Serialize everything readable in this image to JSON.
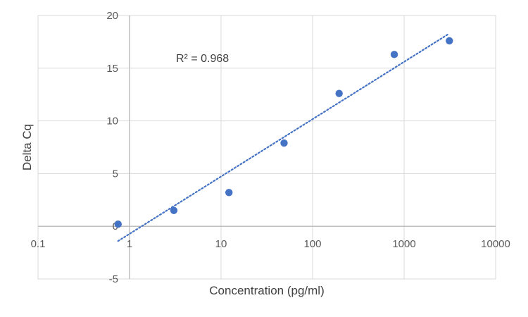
{
  "chart_data": {
    "type": "scatter",
    "title": "",
    "xlabel": "Concentration (pg/ml)",
    "ylabel": "Delta Cq",
    "x_scale": "log",
    "xlim": [
      0.1,
      10000
    ],
    "ylim": [
      -5,
      20
    ],
    "x_ticks": [
      0.1,
      1,
      10,
      100,
      1000,
      10000
    ],
    "x_tick_labels": [
      "0.1",
      "1",
      "10",
      "100",
      "1000",
      "10000"
    ],
    "y_ticks": [
      -5,
      0,
      5,
      10,
      15,
      20
    ],
    "y_tick_labels": [
      "-5",
      "0",
      "5",
      "10",
      "15",
      "20"
    ],
    "grid": true,
    "legend": "none",
    "series": [
      {
        "x": [
          0.75,
          3.05,
          12.2,
          48.8,
          195,
          781,
          3125
        ],
        "y": [
          0.2,
          1.5,
          3.2,
          7.9,
          12.6,
          16.3,
          17.6
        ],
        "color": "#4472C4"
      }
    ],
    "trendline": {
      "type": "logarithmic",
      "x_range": [
        0.75,
        3000
      ],
      "y_range": [
        -1.4,
        18.2
      ],
      "color": "#4472C4",
      "style": "dotted"
    },
    "annotations": [
      {
        "text": "R² = 0.968"
      }
    ]
  }
}
